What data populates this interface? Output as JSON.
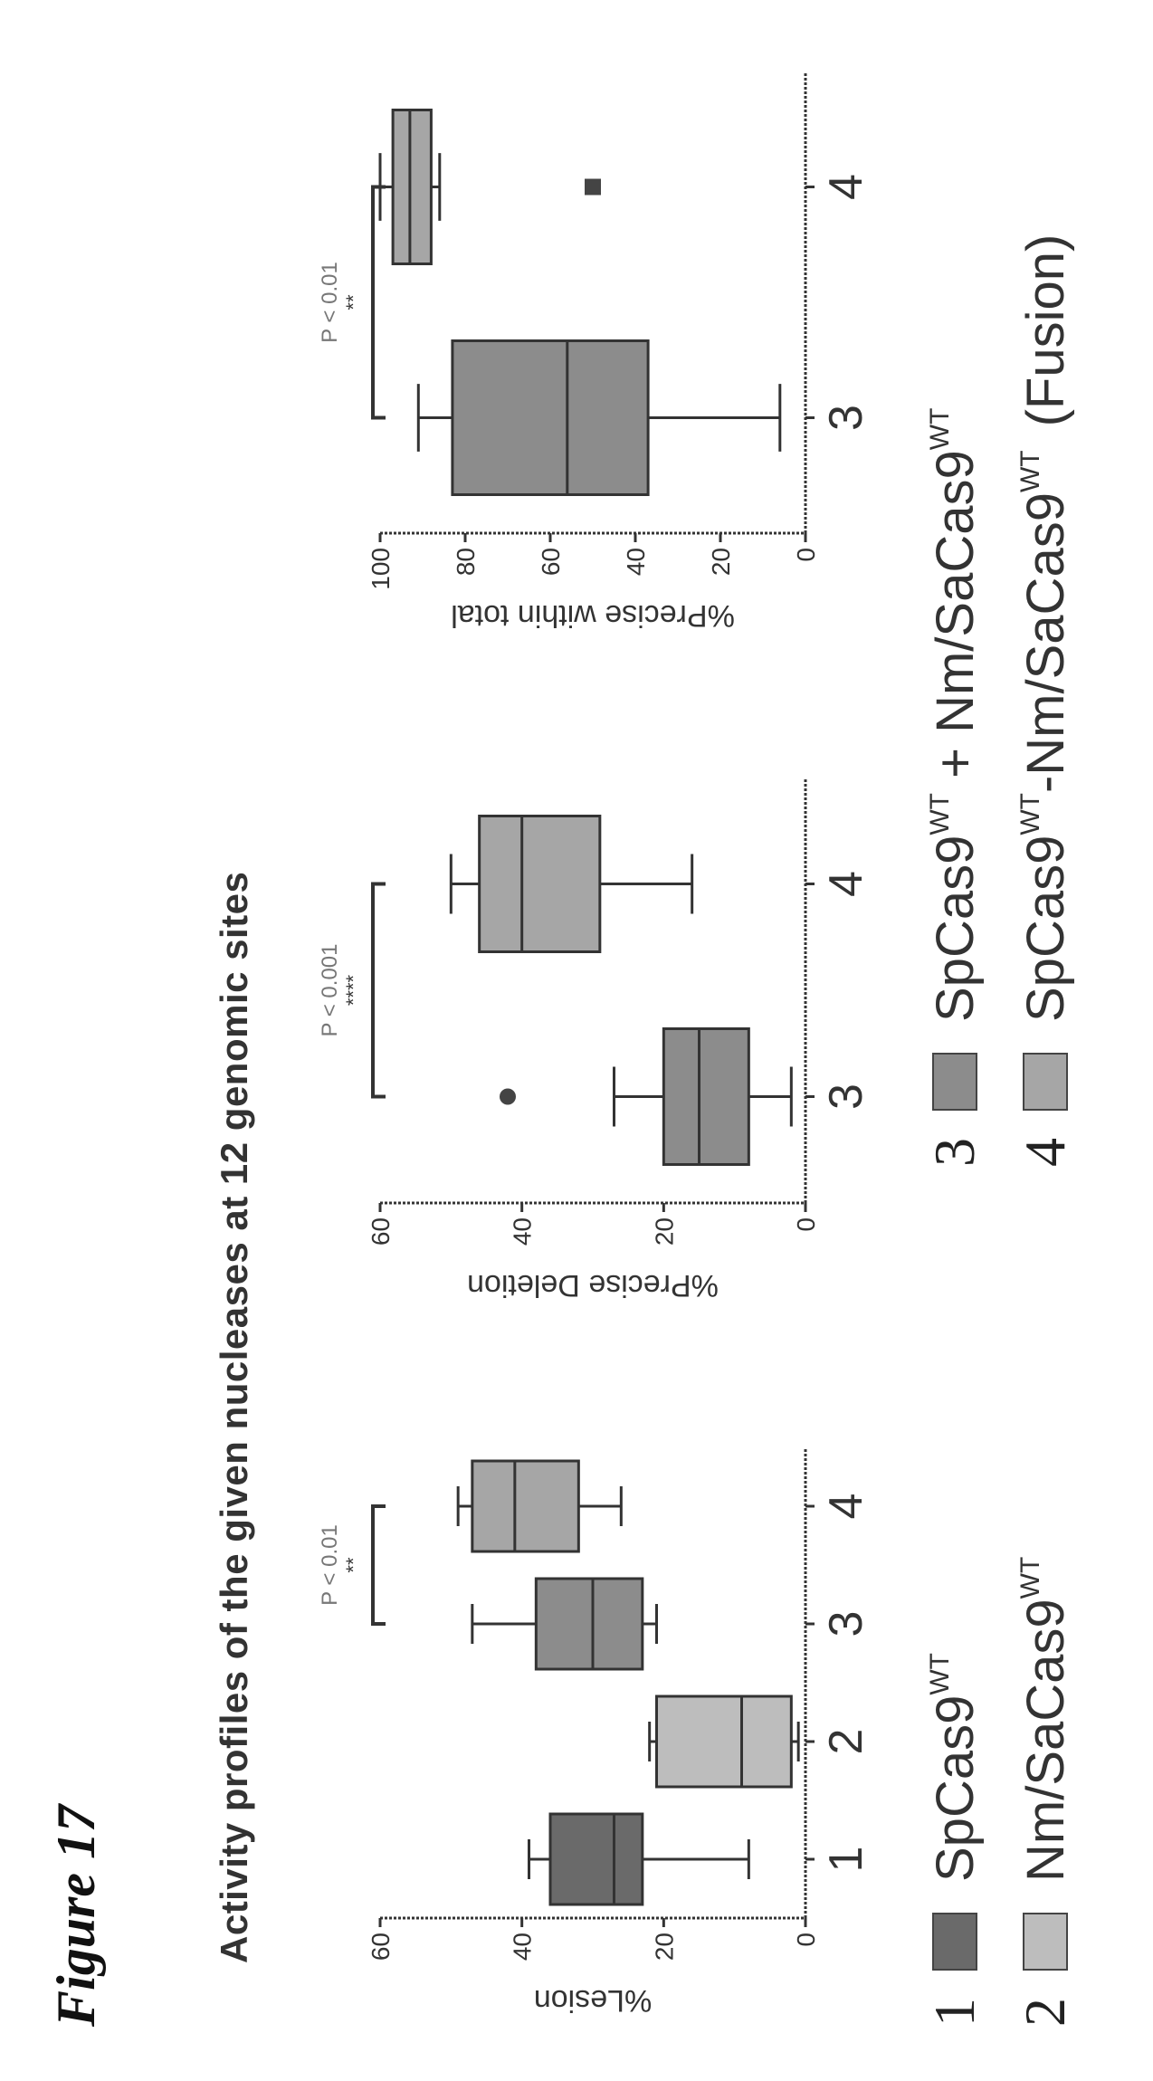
{
  "figure_label": "Figure 17",
  "title": "Activity profiles of the given nucleases at 12 genomic sites",
  "colors": {
    "1": "#6a6a6a",
    "2": "#bdbdbd",
    "3": "#8c8c8c",
    "4": "#a6a6a6",
    "ink": "#333333"
  },
  "legend": [
    {
      "num": "1",
      "name": "SpCas9",
      "sup": "WT",
      "suffix": ""
    },
    {
      "num": "2",
      "name": "Nm/SaCas9",
      "sup": "WT",
      "suffix": ""
    },
    {
      "num": "3",
      "name": "SpCas9",
      "sup": "WT",
      "mid": " + Nm/SaCas9",
      "sup2": "WT",
      "suffix": ""
    },
    {
      "num": "4",
      "name": "SpCas9",
      "sup": "WT",
      "mid": "-Nm/SaCas9",
      "sup2": "WT",
      "suffix": "(Fusion)"
    }
  ],
  "chart_data": [
    {
      "type": "box",
      "ylabel": "%Lesion",
      "ylim": [
        0,
        60
      ],
      "yticks": [
        0,
        20,
        40,
        60
      ],
      "categories": [
        "1",
        "2",
        "3",
        "4"
      ],
      "boxes": [
        {
          "category": "1",
          "min": 8,
          "q1": 23,
          "median": 27,
          "q3": 36,
          "max": 39
        },
        {
          "category": "2",
          "min": 1,
          "q1": 2,
          "median": 9,
          "q3": 21,
          "max": 22
        },
        {
          "category": "3",
          "min": 21,
          "q1": 23,
          "median": 30,
          "q3": 38,
          "max": 47
        },
        {
          "category": "4",
          "min": 26,
          "q1": 32,
          "median": 41,
          "q3": 47,
          "max": 49
        }
      ],
      "outliers": [],
      "significance": [
        {
          "from": "3",
          "to": "4",
          "label": "P < 0.01",
          "stars": "**"
        }
      ]
    },
    {
      "type": "box",
      "ylabel": "%Precise Deletion",
      "ylim": [
        0,
        60
      ],
      "yticks": [
        0,
        20,
        40,
        60
      ],
      "categories": [
        "3",
        "4"
      ],
      "boxes": [
        {
          "category": "3",
          "min": 2,
          "q1": 8,
          "median": 15,
          "q3": 20,
          "max": 27
        },
        {
          "category": "4",
          "min": 16,
          "q1": 29,
          "median": 40,
          "q3": 46,
          "max": 50
        }
      ],
      "outliers": [
        {
          "category": "3",
          "value": 42
        }
      ],
      "significance": [
        {
          "from": "3",
          "to": "4",
          "label": "P < 0.001",
          "stars": "****"
        }
      ]
    },
    {
      "type": "box",
      "ylabel": "%Precise within total",
      "ylim": [
        0,
        100
      ],
      "yticks": [
        0,
        20,
        40,
        60,
        80,
        100
      ],
      "categories": [
        "3",
        "4"
      ],
      "boxes": [
        {
          "category": "3",
          "min": 6,
          "q1": 37,
          "median": 56,
          "q3": 83,
          "max": 91
        },
        {
          "category": "4",
          "min": 86,
          "q1": 88,
          "median": 93,
          "q3": 97,
          "max": 100
        }
      ],
      "outliers": [
        {
          "category": "4",
          "value": 50
        }
      ],
      "significance": [
        {
          "from": "3",
          "to": "4",
          "label": "P < 0.01",
          "stars": "**"
        }
      ]
    }
  ]
}
